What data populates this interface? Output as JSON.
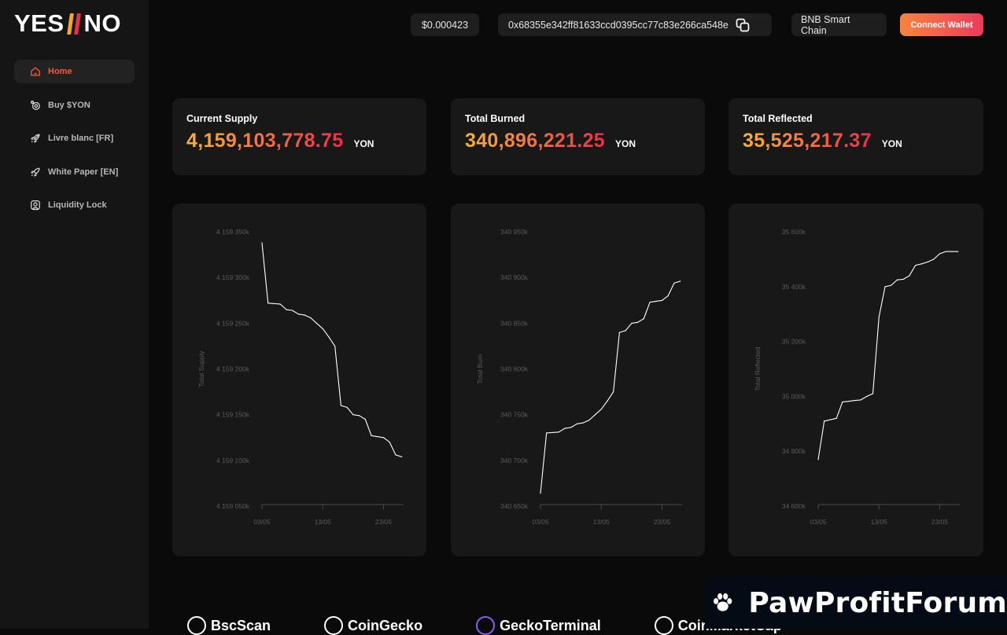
{
  "logo": {
    "left": "YES",
    "right": "NO"
  },
  "sidebar": {
    "items": [
      {
        "label": "Home",
        "icon": "home-icon",
        "active": true
      },
      {
        "label": "Buy $YON",
        "icon": "coins-icon",
        "active": false
      },
      {
        "label": "Livre blanc [FR]",
        "icon": "rocket-icon",
        "active": false
      },
      {
        "label": "White Paper [EN]",
        "icon": "rocket-icon",
        "active": false
      },
      {
        "label": "Liquidity Lock",
        "icon": "lock-icon",
        "active": false
      }
    ]
  },
  "header": {
    "price": "$0.000423",
    "contract_address": "0x68355e342ff81633ccd0395cc77c83e266ca548e",
    "chain": "BNB Smart Chain",
    "connect_label": "Connect Wallet"
  },
  "stats": [
    {
      "label": "Current Supply",
      "value": "4,159,103,778.75",
      "unit": "YON"
    },
    {
      "label": "Total Burned",
      "value": "340,896,221.25",
      "unit": "YON"
    },
    {
      "label": "Total Reflected",
      "value": "35,525,217.37",
      "unit": "YON"
    }
  ],
  "colors": {
    "accent_start": "#f9b23a",
    "accent_end": "#e8304a",
    "active_nav": "#f15a3a"
  },
  "chart_data": [
    {
      "type": "line",
      "ylabel": "Total Supply",
      "ytick_labels": [
        "4 159 350k",
        "4 159 300k",
        "4 159 250k",
        "4 159 200k",
        "4 159 150k",
        "4 159 100k",
        "4 159 050k"
      ],
      "ylim": [
        4159050000,
        4159350000
      ],
      "xtick_labels": [
        "03/05",
        "13/05",
        "23/05"
      ],
      "xlim": [
        3,
        26.3
      ],
      "x": [
        3,
        4,
        6,
        7,
        8,
        9,
        10,
        11,
        12,
        13,
        14,
        15,
        16,
        17,
        18,
        19,
        20,
        21,
        22,
        23,
        24,
        25,
        26
      ],
      "y": [
        4159338000,
        4159272000,
        4159271000,
        4159265000,
        4159264000,
        4159260000,
        4159259000,
        4159256000,
        4159250000,
        4159244000,
        4159235000,
        4159225000,
        4159160000,
        4159158000,
        4159150000,
        4159149000,
        4159145000,
        4159127000,
        4159126000,
        4159125000,
        4159120000,
        4159106000,
        4159104000
      ]
    },
    {
      "type": "line",
      "ylabel": "Total Burn",
      "ytick_labels": [
        "340 950k",
        "340 900k",
        "340 850k",
        "340 800k",
        "340 750k",
        "340 700k",
        "340 650k"
      ],
      "ylim": [
        340650000,
        340950000
      ],
      "xtick_labels": [
        "03/05",
        "13/05",
        "23/05"
      ],
      "xlim": [
        3,
        26.3
      ],
      "x": [
        3,
        4,
        6,
        7,
        8,
        9,
        10,
        11,
        12,
        13,
        14,
        15,
        16,
        17,
        18,
        19,
        20,
        21,
        22,
        23,
        24,
        25,
        26
      ],
      "y": [
        340664000,
        340730000,
        340731000,
        340735000,
        340736000,
        340740000,
        340741000,
        340744000,
        340750000,
        340756000,
        340765000,
        340775000,
        340840000,
        340842000,
        340850000,
        340851000,
        340855000,
        340873000,
        340874000,
        340875000,
        340880000,
        340894000,
        340896000
      ]
    },
    {
      "type": "line",
      "ylabel": "Total Reflected",
      "ytick_labels": [
        "35 600k",
        "35 400k",
        "35 200k",
        "35 000k",
        "34 800k",
        "34 600k"
      ],
      "ylim": [
        34600000,
        35600000
      ],
      "xtick_labels": [
        "03/05",
        "13/05",
        "23/05"
      ],
      "xlim": [
        3,
        26.3
      ],
      "x": [
        3,
        4,
        6,
        7,
        8,
        9,
        10,
        11,
        12,
        13,
        14,
        15,
        16,
        17,
        18,
        19,
        20,
        21,
        22,
        23,
        24,
        25,
        26
      ],
      "y": [
        34770000,
        34910000,
        34920000,
        34980000,
        34982000,
        34985000,
        34987000,
        35000000,
        35010000,
        35290000,
        35400000,
        35405000,
        35425000,
        35427000,
        35440000,
        35478000,
        35483000,
        35490000,
        35500000,
        35520000,
        35528000,
        35528000,
        35528000
      ]
    }
  ],
  "partners": [
    "BscScan",
    "CoinGecko",
    "GeckoTerminal",
    "CoinMarketCap"
  ],
  "watermark": "PawProfitForum"
}
